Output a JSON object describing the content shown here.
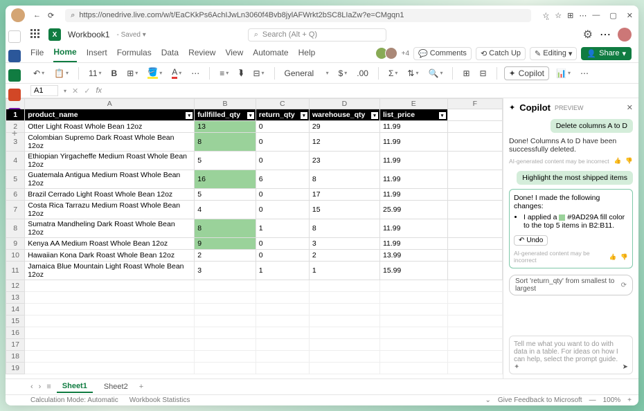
{
  "browser": {
    "url": "https://onedrive.live.com/w/t/EaCKkPs6AchIJwLn3060f4Bvb8jylAFWrkt2bSC8LIaZw?e=CMgqn1"
  },
  "header": {
    "doc_title": "Workbook1",
    "saved_status": "- Saved ▾",
    "search_placeholder": "Search (Alt + Q)"
  },
  "ribbon": {
    "tabs": [
      "File",
      "Home",
      "Insert",
      "Formulas",
      "Data",
      "Review",
      "View",
      "Automate",
      "Help"
    ],
    "active_tab": "Home",
    "presence_extra": "+4",
    "comments": "Comments",
    "catchup": "Catch Up",
    "editing": "Editing",
    "share": "Share"
  },
  "toolbar": {
    "font_size": "11",
    "number_format": "General",
    "copilot": "Copilot"
  },
  "formula": {
    "name_box": "A1",
    "fx": "fx"
  },
  "grid": {
    "columns": [
      "A",
      "B",
      "C",
      "D",
      "E",
      "F"
    ],
    "headers": [
      "product_name",
      "fullfilled_qty",
      "return_qty",
      "warehouse_qty",
      "list_price"
    ],
    "highlight_color": "#9AD29A",
    "rows": [
      {
        "n": 2,
        "a": "Otter Light Roast Whole Bean 12oz",
        "b": "13",
        "c": "0",
        "d": "29",
        "e": "11.99",
        "hl": true
      },
      {
        "n": 3,
        "a": "Colombian Supremo Dark Roast Whole Bean 12oz",
        "b": "8",
        "c": "0",
        "d": "12",
        "e": "11.99",
        "hl": true
      },
      {
        "n": 4,
        "a": "Ethiopian Yirgacheffe Medium Roast Whole Bean 12oz",
        "b": "5",
        "c": "0",
        "d": "23",
        "e": "11.99",
        "hl": false
      },
      {
        "n": 5,
        "a": "Guatemala Antigua Medium Roast Whole Bean 12oz",
        "b": "16",
        "c": "6",
        "d": "8",
        "e": "11.99",
        "hl": true
      },
      {
        "n": 6,
        "a": "Brazil Cerrado Light Roast Whole Bean 12oz",
        "b": "5",
        "c": "0",
        "d": "17",
        "e": "11.99",
        "hl": false
      },
      {
        "n": 7,
        "a": "Costa Rica Tarrazu Medium Roast Whole Bean 12oz",
        "b": "4",
        "c": "0",
        "d": "15",
        "e": "25.99",
        "hl": false
      },
      {
        "n": 8,
        "a": "Sumatra Mandheling Dark Roast Whole Bean 12oz",
        "b": "8",
        "c": "1",
        "d": "8",
        "e": "11.99",
        "hl": true
      },
      {
        "n": 9,
        "a": "Kenya AA Medium Roast Whole Bean 12oz",
        "b": "9",
        "c": "0",
        "d": "3",
        "e": "11.99",
        "hl": true
      },
      {
        "n": 10,
        "a": "Hawaiian Kona Dark Roast Whole Bean 12oz",
        "b": "2",
        "c": "0",
        "d": "2",
        "e": "13.99",
        "hl": false
      },
      {
        "n": 11,
        "a": "Jamaica Blue Mountain Light Roast Whole Bean 12oz",
        "b": "3",
        "c": "1",
        "d": "1",
        "e": "15.99",
        "hl": false
      }
    ],
    "empty_rows": [
      12,
      13,
      14,
      15,
      16,
      17,
      18,
      19
    ]
  },
  "copilot": {
    "title": "Copilot",
    "preview": "PREVIEW",
    "user1": "Delete columns A to D",
    "ai1": "Done! Columns A to D have been successfully deleted.",
    "disclaimer": "AI-generated content may be incorrect",
    "user2": "Highlight the most shipped items",
    "ai2_intro": "Done! I made the following changes:",
    "ai2_item_pre": "I applied a ",
    "ai2_item_post": " #9AD29A fill color to the top 5 items in B2:B11.",
    "undo": "Undo",
    "suggestion": "Sort 'return_qty' from smallest to largest",
    "prompt_placeholder": "Tell me what you want to do with data in a table. For ideas on how I can help, select the prompt guide."
  },
  "sheets": {
    "tabs": [
      "Sheet1",
      "Sheet2"
    ],
    "active": "Sheet1"
  },
  "status": {
    "calc": "Calculation Mode: Automatic",
    "stats": "Workbook Statistics",
    "feedback": "Give Feedback to Microsoft",
    "zoom": "100%"
  }
}
